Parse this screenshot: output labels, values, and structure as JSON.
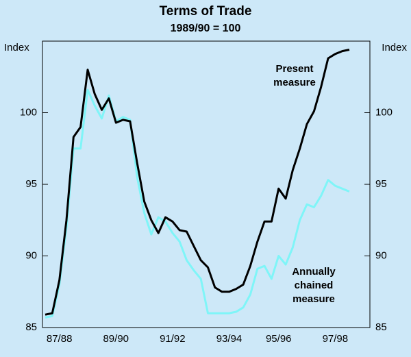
{
  "chart_data": {
    "type": "line",
    "title": "Terms of Trade",
    "subtitle": "1989/90 = 100",
    "y_label": "Index",
    "y2_label": "Index",
    "categories": [
      null,
      null,
      "87/88",
      null,
      null,
      null,
      null,
      null,
      null,
      null,
      "89/90",
      null,
      null,
      null,
      null,
      null,
      null,
      null,
      "91/92",
      null,
      null,
      null,
      null,
      null,
      null,
      null,
      "93/94",
      null,
      null,
      null,
      null,
      null,
      null,
      "95/96",
      null,
      null,
      null,
      null,
      null,
      null,
      null,
      "97/98",
      null,
      null
    ],
    "series": [
      {
        "name": "Present measure",
        "color": "#000000",
        "values": [
          85.9,
          86.0,
          88.3,
          92.5,
          98.3,
          99.0,
          103.0,
          101.3,
          100.2,
          101.0,
          99.3,
          99.5,
          99.4,
          96.5,
          93.8,
          92.5,
          91.6,
          92.7,
          92.4,
          91.8,
          91.7,
          90.7,
          89.7,
          89.2,
          87.8,
          87.5,
          87.5,
          87.7,
          88.0,
          89.3,
          91.0,
          92.4,
          92.4,
          94.7,
          94.0,
          96.0,
          97.5,
          99.2,
          100.1,
          101.8,
          103.8,
          104.1,
          104.3,
          104.4
        ]
      },
      {
        "name": "Annually chained measure",
        "color": "#7ff5f8",
        "values": [
          85.7,
          85.8,
          88.0,
          92.0,
          97.5,
          97.5,
          101.6,
          100.5,
          99.6,
          101.2,
          99.4,
          99.7,
          99.5,
          95.5,
          93.0,
          91.5,
          92.7,
          92.4,
          91.6,
          91.0,
          89.7,
          89.0,
          88.4,
          86.0,
          86.0,
          86.0,
          86.0,
          86.1,
          86.4,
          87.3,
          89.1,
          89.3,
          88.4,
          90.0,
          89.4,
          90.6,
          92.5,
          93.6,
          93.4,
          94.2,
          95.3,
          94.9,
          94.7,
          94.5
        ]
      }
    ],
    "annotations": [
      {
        "lines": [
          "Present",
          "measure"
        ],
        "series": 0
      },
      {
        "lines": [
          "Annually",
          "chained",
          "measure"
        ],
        "series": 1
      }
    ],
    "ylim": [
      85,
      105
    ],
    "yticks": [
      85,
      90,
      95,
      100
    ],
    "y2lim": [
      85,
      105
    ],
    "y2ticks": [
      85,
      90,
      95,
      100
    ]
  }
}
